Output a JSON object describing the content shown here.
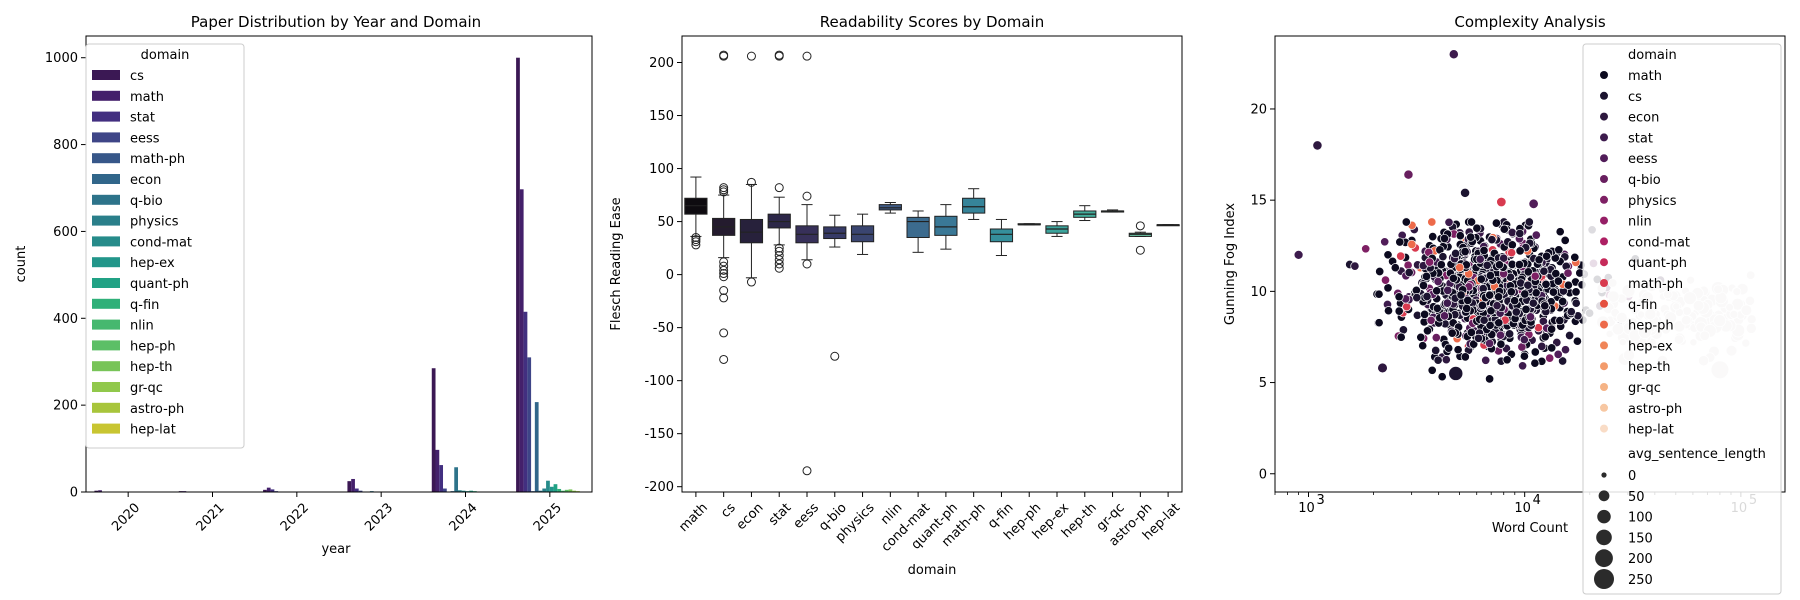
{
  "chart_data": [
    {
      "type": "bar",
      "title": "Paper Distribution by Year and Domain",
      "xlabel": "year",
      "ylabel": "count",
      "ylim": [
        0,
        1050
      ],
      "yticks": [
        0,
        200,
        400,
        600,
        800,
        1000
      ],
      "categories": [
        "2020",
        "2021",
        "2022",
        "2023",
        "2024",
        "2025"
      ],
      "legend_title": "domain",
      "legend_position": "upper-left",
      "series": [
        {
          "name": "cs",
          "color": "#3b1854",
          "values": [
            3,
            2,
            5,
            25,
            285,
            1000
          ]
        },
        {
          "name": "math",
          "color": "#44206b",
          "values": [
            4,
            2,
            10,
            30,
            97,
            697
          ]
        },
        {
          "name": "stat",
          "color": "#422f80",
          "values": [
            1,
            1,
            6,
            8,
            62,
            415
          ]
        },
        {
          "name": "eess",
          "color": "#3e4587",
          "values": [
            0,
            0,
            2,
            3,
            8,
            310
          ]
        },
        {
          "name": "math-ph",
          "color": "#375789",
          "values": [
            0,
            0,
            0,
            0,
            0,
            2
          ]
        },
        {
          "name": "econ",
          "color": "#31668a",
          "values": [
            0,
            0,
            0,
            1,
            2,
            207
          ]
        },
        {
          "name": "q-bio",
          "color": "#2d738a",
          "values": [
            0,
            0,
            1,
            2,
            57,
            3
          ]
        },
        {
          "name": "physics",
          "color": "#2a7f8a",
          "values": [
            0,
            0,
            0,
            0,
            4,
            8
          ]
        },
        {
          "name": "cond-mat",
          "color": "#268b8a",
          "values": [
            0,
            0,
            0,
            0,
            3,
            26
          ]
        },
        {
          "name": "hep-ex",
          "color": "#22968a",
          "values": [
            0,
            0,
            0,
            0,
            2,
            12
          ]
        },
        {
          "name": "quant-ph",
          "color": "#21a285",
          "values": [
            0,
            0,
            0,
            0,
            3,
            18
          ]
        },
        {
          "name": "q-fin",
          "color": "#2fb079",
          "values": [
            0,
            0,
            0,
            0,
            2,
            7
          ]
        },
        {
          "name": "nlin",
          "color": "#46b86f",
          "values": [
            0,
            0,
            0,
            0,
            1,
            3
          ]
        },
        {
          "name": "hep-ph",
          "color": "#5cbf66",
          "values": [
            0,
            0,
            0,
            0,
            1,
            5
          ]
        },
        {
          "name": "hep-th",
          "color": "#78c458",
          "values": [
            0,
            0,
            0,
            0,
            0,
            6
          ]
        },
        {
          "name": "gr-qc",
          "color": "#91c84b",
          "values": [
            0,
            0,
            0,
            0,
            1,
            3
          ]
        },
        {
          "name": "astro-ph",
          "color": "#a8c53b",
          "values": [
            0,
            0,
            0,
            0,
            0,
            2
          ]
        },
        {
          "name": "hep-lat",
          "color": "#c8c531",
          "values": [
            0,
            0,
            0,
            0,
            0,
            1
          ]
        }
      ]
    },
    {
      "type": "box",
      "title": "Readability Scores by Domain",
      "xlabel": "domain",
      "ylabel": "Flesch Reading Ease",
      "ylim": [
        -205,
        225
      ],
      "yticks": [
        -200,
        -150,
        -100,
        -50,
        0,
        50,
        100,
        150,
        200
      ],
      "categories": [
        "math",
        "cs",
        "econ",
        "stat",
        "eess",
        "q-bio",
        "physics",
        "nlin",
        "cond-mat",
        "quant-ph",
        "math-ph",
        "q-fin",
        "hep-ph",
        "hep-ex",
        "hep-th",
        "gr-qc",
        "astro-ph",
        "hep-lat"
      ],
      "boxes": [
        {
          "name": "math",
          "color": "#0e0b10",
          "whislo": 36,
          "q1": 57,
          "med": 65,
          "q3": 72,
          "whishi": 92,
          "fliers": [
            28,
            31,
            33,
            35
          ]
        },
        {
          "name": "cs",
          "color": "#241b2e",
          "whislo": 16,
          "q1": 37,
          "med": 45,
          "q3": 53,
          "whishi": 75,
          "fliers": [
            206,
            207,
            78,
            80,
            82,
            12,
            8,
            4,
            1,
            -2,
            -15,
            -22,
            -55,
            -80
          ]
        },
        {
          "name": "econ",
          "color": "#27213b",
          "whislo": -3,
          "q1": 30,
          "med": 40,
          "q3": 52,
          "whishi": 85,
          "fliers": [
            206,
            87,
            -7
          ]
        },
        {
          "name": "stat",
          "color": "#2c2748",
          "whislo": 28,
          "q1": 44,
          "med": 50,
          "q3": 57,
          "whishi": 73,
          "fliers": [
            206,
            207,
            82,
            25,
            22,
            18,
            14,
            10,
            6
          ]
        },
        {
          "name": "eess",
          "color": "#373059",
          "whislo": 14,
          "q1": 30,
          "med": 38,
          "q3": 46,
          "whishi": 66,
          "fliers": [
            206,
            74,
            10,
            -185
          ]
        },
        {
          "name": "q-bio",
          "color": "#363a66",
          "whislo": 26,
          "q1": 34,
          "med": 39,
          "q3": 45,
          "whishi": 56,
          "fliers": [
            -77
          ]
        },
        {
          "name": "physics",
          "color": "#3a4570",
          "whislo": 19,
          "q1": 31,
          "med": 38,
          "q3": 46,
          "whishi": 57,
          "fliers": []
        },
        {
          "name": "nlin",
          "color": "#3f5a84",
          "whislo": 58,
          "q1": 61,
          "med": 63,
          "q3": 66,
          "whishi": 68,
          "fliers": []
        },
        {
          "name": "cond-mat",
          "color": "#3c6b8e",
          "whislo": 21,
          "q1": 35,
          "med": 50,
          "q3": 54,
          "whishi": 60,
          "fliers": []
        },
        {
          "name": "quant-ph",
          "color": "#3a7896",
          "whislo": 24,
          "q1": 37,
          "med": 45,
          "q3": 55,
          "whishi": 66,
          "fliers": []
        },
        {
          "name": "math-ph",
          "color": "#368499",
          "whislo": 52,
          "q1": 58,
          "med": 64,
          "q3": 72,
          "whishi": 81,
          "fliers": []
        },
        {
          "name": "q-fin",
          "color": "#358f9b",
          "whislo": 18,
          "q1": 31,
          "med": 38,
          "q3": 43,
          "whishi": 52,
          "fliers": []
        },
        {
          "name": "hep-ph",
          "color": "#37999b",
          "whislo": 47,
          "q1": 47,
          "med": 47,
          "q3": 48,
          "whishi": 48,
          "fliers": []
        },
        {
          "name": "hep-ex",
          "color": "#3ca49c",
          "whislo": 36,
          "q1": 39,
          "med": 43,
          "q3": 46,
          "whishi": 50,
          "fliers": []
        },
        {
          "name": "hep-th",
          "color": "#44ae9c",
          "whislo": 51,
          "q1": 54,
          "med": 57,
          "q3": 60,
          "whishi": 65,
          "fliers": []
        },
        {
          "name": "gr-qc",
          "color": "#52b79d",
          "whislo": 59,
          "q1": 59,
          "med": 60,
          "q3": 60,
          "whishi": 61,
          "fliers": []
        },
        {
          "name": "astro-ph",
          "color": "#69c1a1",
          "whislo": 36,
          "q1": 36,
          "med": 38,
          "q3": 39,
          "whishi": 40,
          "fliers": [
            46,
            23
          ]
        },
        {
          "name": "hep-lat",
          "color": "#8bcaa8",
          "whislo": 47,
          "q1": 47,
          "med": 47,
          "q3": 47,
          "whishi": 47,
          "fliers": []
        }
      ]
    },
    {
      "type": "scatter",
      "title": "Complexity Analysis",
      "xlabel": "Word Count",
      "ylabel": "Gunning Fog Index",
      "xscale": "log",
      "xlim": [
        700,
        160000
      ],
      "ylim": [
        -1,
        24
      ],
      "yticks": [
        0,
        5,
        10,
        15,
        20
      ],
      "xtick_labels": [
        "10",
        "10",
        "10"
      ],
      "xtick_exponents": [
        "3",
        "4",
        "5"
      ],
      "xtick_values": [
        1000,
        10000,
        100000
      ],
      "legend_title": "domain",
      "legend_position": "upper-right",
      "hue": [
        {
          "name": "math",
          "color": "#0c0a1f"
        },
        {
          "name": "cs",
          "color": "#1c1430"
        },
        {
          "name": "econ",
          "color": "#2e183f"
        },
        {
          "name": "stat",
          "color": "#3d1b4d"
        },
        {
          "name": "eess",
          "color": "#511d59"
        },
        {
          "name": "q-bio",
          "color": "#681f5f"
        },
        {
          "name": "physics",
          "color": "#7e2064"
        },
        {
          "name": "nlin",
          "color": "#951f66"
        },
        {
          "name": "cond-mat",
          "color": "#ad1f63"
        },
        {
          "name": "quant-ph",
          "color": "#c52a5a"
        },
        {
          "name": "math-ph",
          "color": "#d83a4f"
        },
        {
          "name": "q-fin",
          "color": "#e5503f"
        },
        {
          "name": "hep-ph",
          "color": "#ed6a4a"
        },
        {
          "name": "hep-ex",
          "color": "#f08558"
        },
        {
          "name": "hep-th",
          "color": "#f39b6b"
        },
        {
          "name": "gr-qc",
          "color": "#f5b385"
        },
        {
          "name": "astro-ph",
          "color": "#f7c7a2"
        },
        {
          "name": "hep-lat",
          "color": "#f9dcc6"
        }
      ],
      "size_title": "avg_sentence_length",
      "size_levels": [
        "0",
        "50",
        "100",
        "150",
        "200",
        "250"
      ],
      "notable_points": [
        {
          "word_count": 4700,
          "fog": 23.0,
          "domain": "stat",
          "size": 20
        },
        {
          "word_count": 1100,
          "fog": 18.0,
          "domain": "econ",
          "size": 20
        },
        {
          "word_count": 900,
          "fog": 12.0,
          "domain": "stat",
          "size": 18
        },
        {
          "word_count": 2900,
          "fog": 16.4,
          "domain": "q-bio",
          "size": 20
        },
        {
          "word_count": 2200,
          "fog": 5.8,
          "domain": "econ",
          "size": 25
        },
        {
          "word_count": 4800,
          "fog": 5.5,
          "domain": "cs",
          "size": 80
        },
        {
          "word_count": 80000,
          "fog": 5.7,
          "domain": "hep-lat",
          "size": 150
        },
        {
          "word_count": 7800,
          "fog": 14.9,
          "domain": "math-ph",
          "size": 22
        },
        {
          "word_count": 11000,
          "fog": 14.8,
          "domain": "eess",
          "size": 22
        },
        {
          "word_count": 5300,
          "fog": 15.4,
          "domain": "cs",
          "size": 20
        }
      ],
      "cluster_summary": {
        "word_count_range": [
          1000,
          130000
        ],
        "fog_range": [
          5,
          14
        ],
        "fog_center": 10
      }
    }
  ]
}
